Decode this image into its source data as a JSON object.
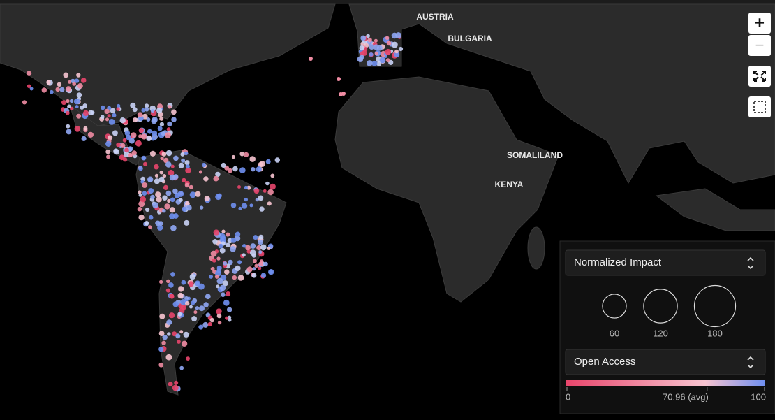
{
  "map_labels": [
    "AUSTRIA",
    "BULGARIA",
    "SOMALILAND",
    "KENYA"
  ],
  "zoom_controls": {
    "zoom_in": "+",
    "zoom_out": "−"
  },
  "size_legend": {
    "title": "Normalized Impact",
    "values": [
      60,
      120,
      180
    ]
  },
  "color_legend": {
    "title": "Open Access",
    "ticks": [
      0,
      {
        "value": 70.96,
        "label": "70.96 (avg)"
      },
      100
    ]
  }
}
